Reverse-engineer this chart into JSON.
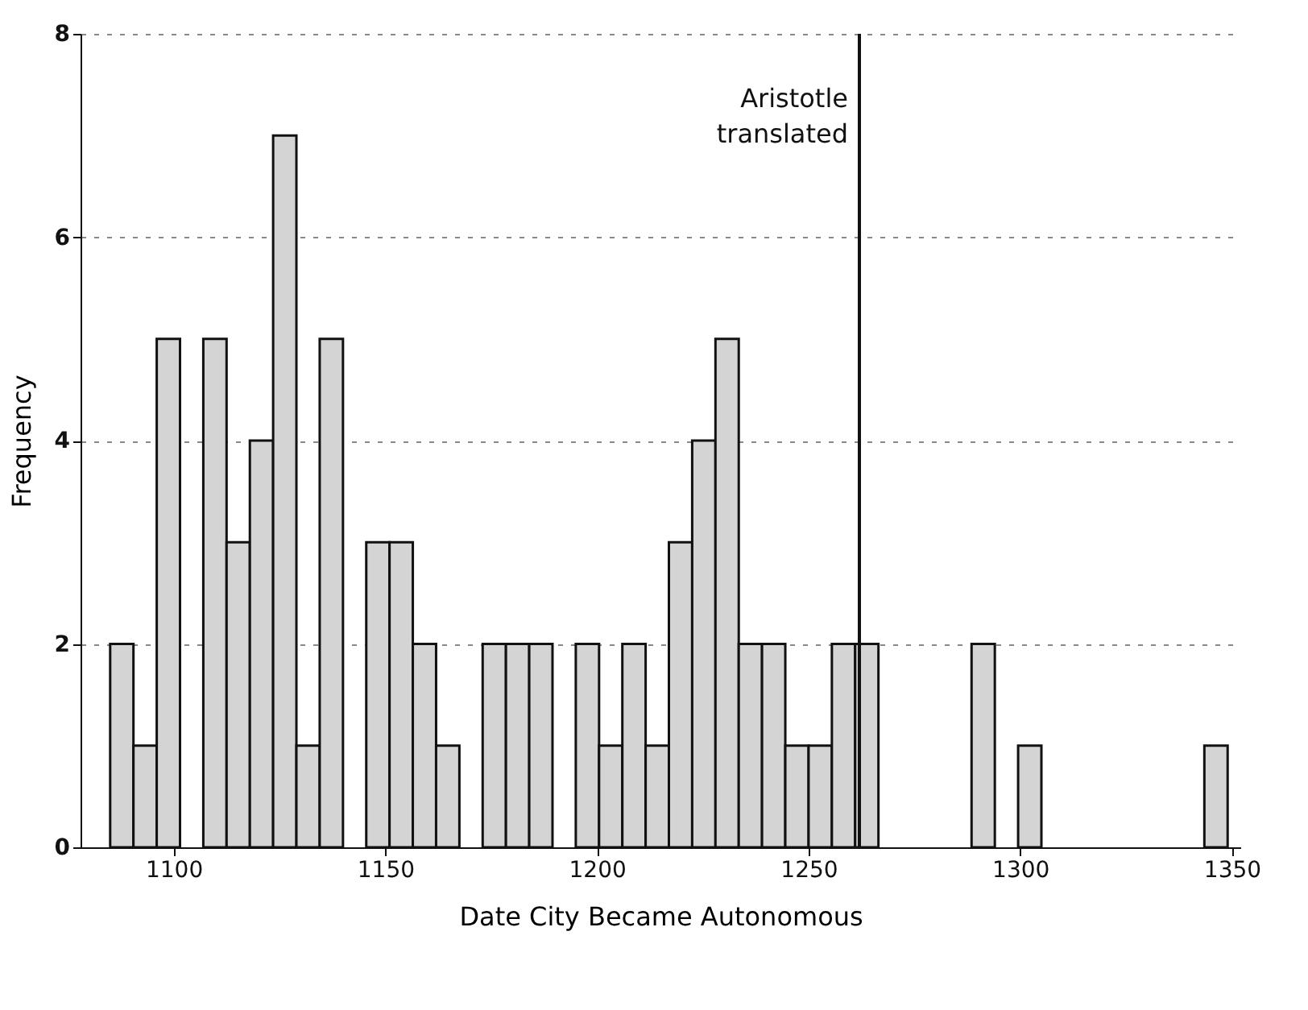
{
  "chart_data": {
    "type": "histogram",
    "xlabel": "Date City Became Autonomous",
    "ylabel": "Frequency",
    "bins": [
      1085,
      1090.5,
      1096,
      1101.5,
      1107,
      1112.5,
      1118,
      1123.5,
      1129,
      1134.5,
      1140,
      1145.5,
      1151,
      1156.5,
      1162,
      1167.5,
      1173,
      1178.5,
      1184,
      1189.5,
      1195,
      1200.5,
      1206,
      1211.5,
      1217,
      1222.5,
      1228,
      1233.5,
      1239,
      1244.5,
      1250,
      1255.5,
      1261,
      1266.5,
      1272,
      1277.5,
      1283,
      1288.5,
      1294,
      1299.5,
      1305,
      1310.5,
      1316,
      1321.5,
      1327,
      1332.5,
      1338,
      1343.5,
      1349
    ],
    "values": [
      2,
      1,
      5,
      0,
      5,
      3,
      4,
      7,
      1,
      5,
      0,
      3,
      3,
      2,
      1,
      0,
      2,
      2,
      2,
      0,
      2,
      1,
      2,
      1,
      3,
      4,
      5,
      2,
      2,
      1,
      1,
      2,
      2,
      0,
      0,
      0,
      0,
      2,
      0,
      1,
      0,
      0,
      0,
      0,
      0,
      0,
      0,
      1
    ],
    "color": "#d4d4d4",
    "xlim": [
      1078,
      1352
    ],
    "xticks": [
      1100,
      1150,
      1200,
      1250,
      1300,
      1350
    ],
    "ylim": [
      0,
      8
    ],
    "yticks": [
      0,
      2,
      4,
      6,
      8
    ],
    "grid": "y",
    "ref_lines": [
      {
        "axis": "x",
        "value": 1262,
        "label": "Aristotle translated",
        "color": "#111111"
      }
    ]
  }
}
